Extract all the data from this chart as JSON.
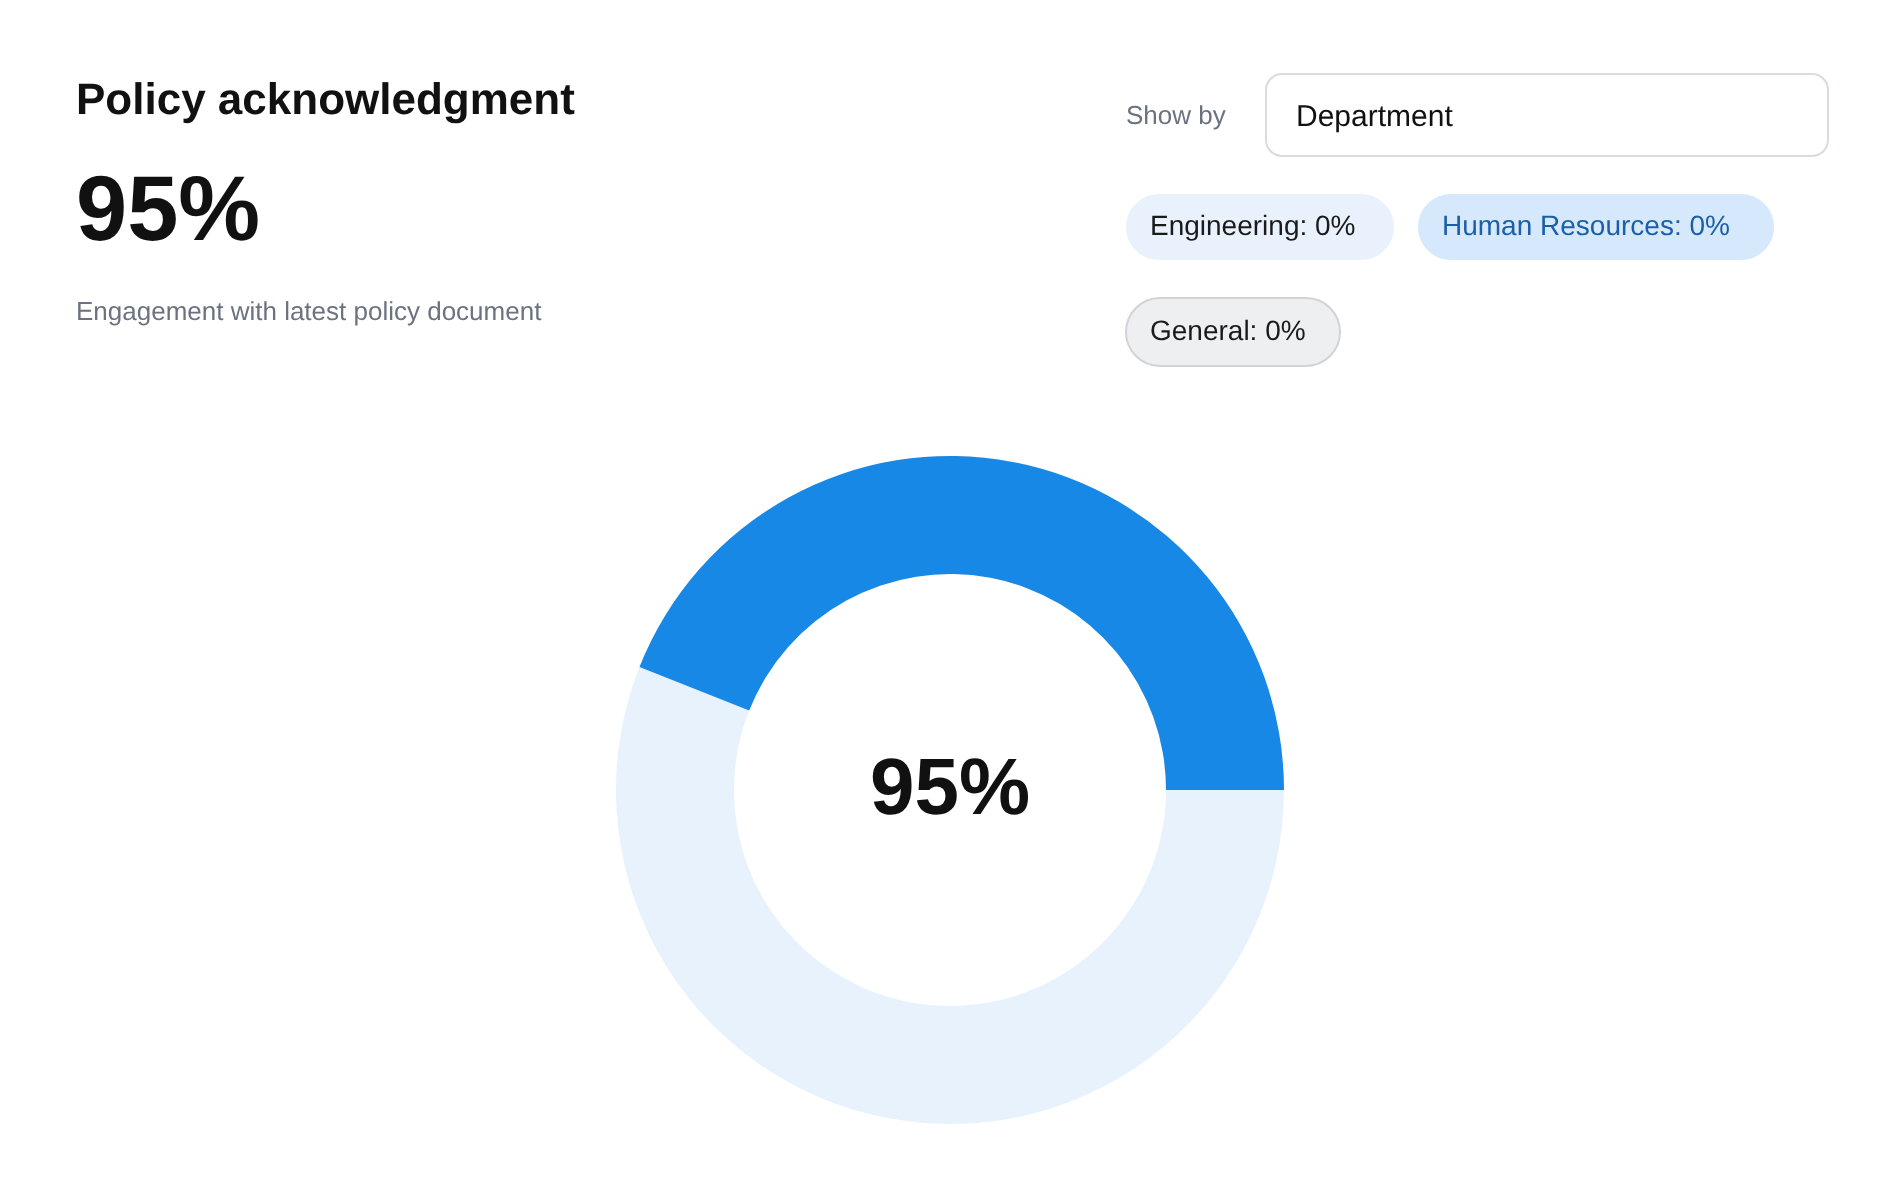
{
  "chart_data": {
    "type": "donut",
    "title": "Policy acknowledgment",
    "subtitle": "Engagement with latest policy document",
    "categories": [
      null,
      null
    ],
    "values": [
      56,
      44
    ],
    "colors": [
      "#e8f2fc",
      "#1888e6"
    ],
    "annotations": [
      "95%",
      "95%",
      "Show by",
      "Department",
      "Engineering: 0%",
      "Human Resources: 0%",
      "General: 0%"
    ]
  }
}
